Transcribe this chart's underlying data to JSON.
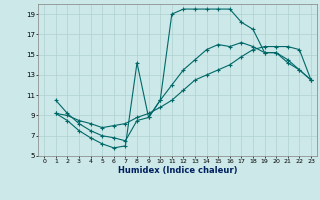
{
  "xlabel": "Humidex (Indice chaleur)",
  "bg_color": "#cce8e8",
  "grid_color": "#b0d0d0",
  "line_color": "#006868",
  "line1_x": [
    1,
    2,
    3,
    4,
    5,
    6,
    7,
    8,
    9,
    10,
    11,
    12,
    13,
    14,
    15,
    16,
    17,
    18,
    19,
    20,
    21,
    22,
    23
  ],
  "line1_y": [
    10.5,
    9.2,
    8.2,
    7.5,
    7.0,
    6.8,
    6.5,
    8.5,
    8.8,
    10.5,
    12.0,
    13.5,
    14.5,
    15.5,
    16.0,
    15.8,
    16.2,
    15.8,
    15.2,
    15.2,
    14.5,
    13.5,
    12.5
  ],
  "line2_x": [
    1,
    2,
    3,
    4,
    5,
    6,
    7,
    8,
    9,
    10,
    11,
    12,
    13,
    14,
    15,
    16,
    17,
    18,
    19,
    20,
    21,
    22,
    23
  ],
  "line2_y": [
    9.2,
    9.0,
    8.5,
    8.2,
    7.8,
    8.0,
    8.2,
    8.8,
    9.2,
    9.8,
    10.5,
    11.5,
    12.5,
    13.0,
    13.5,
    14.0,
    14.8,
    15.5,
    15.8,
    15.8,
    15.8,
    15.5,
    12.5
  ],
  "line3_x": [
    1,
    2,
    3,
    4,
    5,
    6,
    7,
    8,
    9,
    10,
    11,
    12,
    13,
    14,
    15,
    16,
    17,
    18,
    19,
    20,
    21,
    22,
    23
  ],
  "line3_y": [
    9.2,
    8.5,
    7.5,
    6.8,
    6.2,
    5.8,
    6.0,
    14.2,
    8.8,
    10.5,
    19.0,
    19.5,
    19.5,
    19.5,
    19.5,
    19.5,
    18.2,
    17.5,
    15.2,
    15.2,
    14.2,
    13.5,
    12.5
  ],
  "xlim": [
    -0.5,
    23.5
  ],
  "ylim": [
    5,
    20
  ],
  "xticks": [
    0,
    1,
    2,
    3,
    4,
    5,
    6,
    7,
    8,
    9,
    10,
    11,
    12,
    13,
    14,
    15,
    16,
    17,
    18,
    19,
    20,
    21,
    22,
    23
  ],
  "yticks": [
    5,
    7,
    9,
    11,
    13,
    15,
    17,
    19
  ]
}
